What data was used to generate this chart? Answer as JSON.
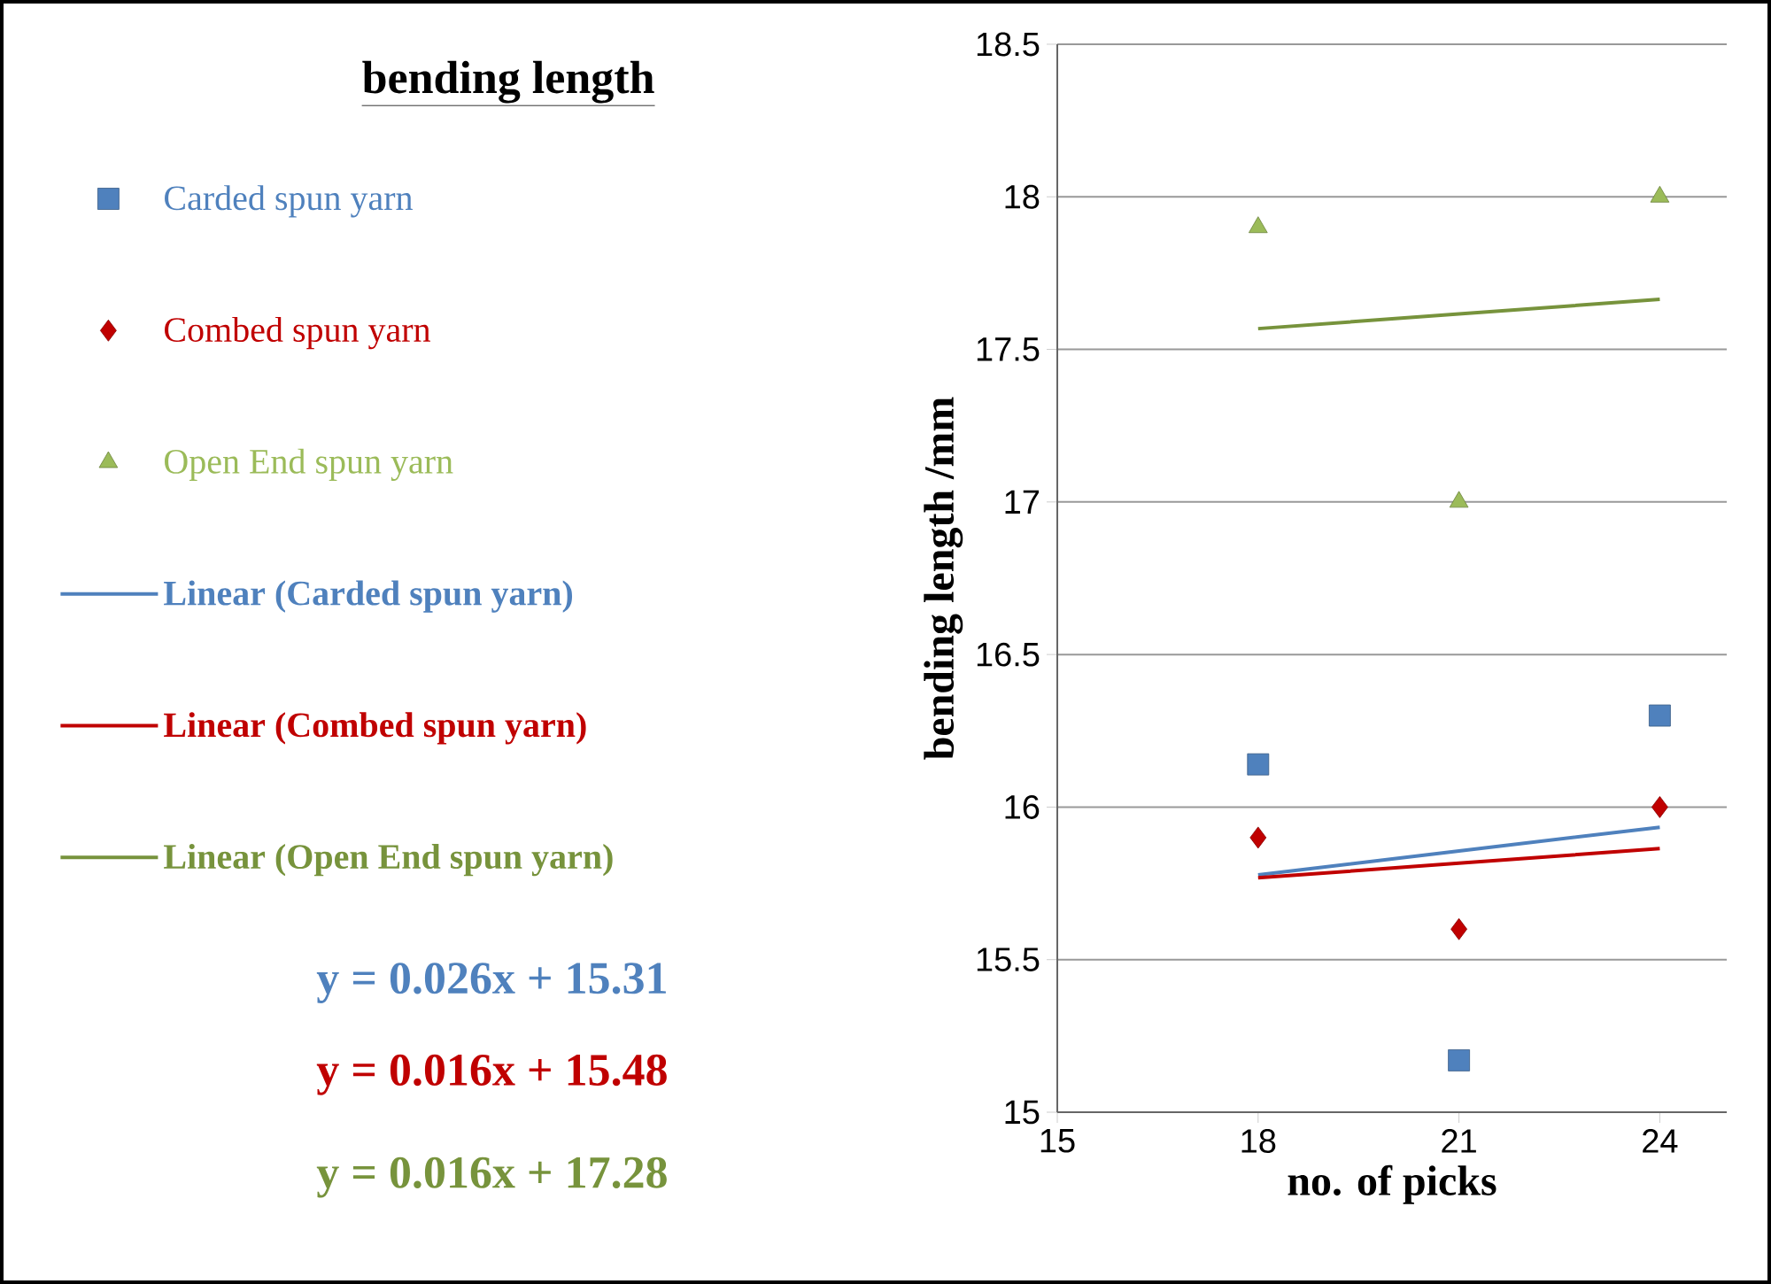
{
  "chart_data": {
    "type": "scatter",
    "title": "bending length",
    "xlabel": "no. of picks",
    "ylabel": "bending length /mm",
    "xlim": [
      15,
      25
    ],
    "xticks": [
      15,
      18,
      21,
      24
    ],
    "ylim": [
      15,
      18.5
    ],
    "yticks": [
      15,
      15.5,
      16,
      16.5,
      17,
      17.5,
      18,
      18.5
    ],
    "grid": "y",
    "legend": "left",
    "x": [
      18,
      21,
      24
    ],
    "series": [
      {
        "name": "Carded spun yarn",
        "marker": "square",
        "color": "#4f81bd",
        "values": [
          16.14,
          15.17,
          16.3
        ]
      },
      {
        "name": "Combed spun yarn",
        "marker": "diamond",
        "color": "#c00000",
        "values": [
          15.9,
          15.6,
          16.0
        ]
      },
      {
        "name": "Open End spun yarn",
        "marker": "triangle",
        "color": "#9bbb59",
        "values": [
          17.9,
          17.0,
          18.0
        ]
      },
      {
        "name": "Linear (Carded spun yarn)",
        "type": "line",
        "color": "#4f81bd",
        "values": [
          15.778,
          15.856,
          15.934
        ]
      },
      {
        "name": "Linear (Combed spun yarn)",
        "type": "line",
        "color": "#c00000",
        "values": [
          15.768,
          15.816,
          15.864
        ]
      },
      {
        "name": "Linear (Open End spun yarn)",
        "type": "line",
        "color": "#77933c",
        "values": [
          17.568,
          17.616,
          17.664
        ]
      }
    ],
    "annotations": [
      "y = 0.026x + 15.31",
      "y = 0.016x + 15.48",
      "y = 0.016x + 17.28"
    ]
  }
}
